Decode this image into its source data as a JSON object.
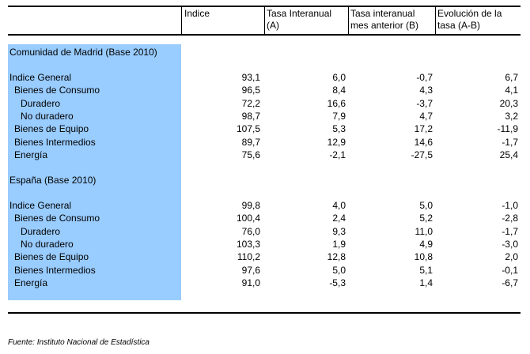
{
  "headers": {
    "indice": "Indice",
    "tasa_interanual": [
      "Tasa Interanual",
      "(A)"
    ],
    "tasa_mes_anterior": [
      "Tasa interanual",
      "mes anterior (B)"
    ],
    "evolucion": [
      "Evolución de la",
      "tasa (A-B)"
    ]
  },
  "sections": [
    {
      "title": "Comunidad de Madrid (Base 2010)",
      "rows": [
        {
          "label": "Indice General",
          "indent": 0,
          "values": [
            "93,1",
            "6,0",
            "-0,7",
            "6,7"
          ]
        },
        {
          "label": "Bienes de Consumo",
          "indent": 1,
          "values": [
            "96,5",
            "8,4",
            "4,3",
            "4,1"
          ]
        },
        {
          "label": "Duradero",
          "indent": 2,
          "values": [
            "72,2",
            "16,6",
            "-3,7",
            "20,3"
          ]
        },
        {
          "label": "No duradero",
          "indent": 2,
          "values": [
            "98,7",
            "7,9",
            "4,7",
            "3,2"
          ]
        },
        {
          "label": "Bienes de Equipo",
          "indent": 1,
          "values": [
            "107,5",
            "5,3",
            "17,2",
            "-11,9"
          ]
        },
        {
          "label": "Bienes Intermedios",
          "indent": 1,
          "values": [
            "89,7",
            "12,9",
            "14,6",
            "-1,7"
          ]
        },
        {
          "label": "Energía",
          "indent": 1,
          "values": [
            "75,6",
            "-2,1",
            "-27,5",
            "25,4"
          ]
        }
      ]
    },
    {
      "title": "España (Base 2010)",
      "rows": [
        {
          "label": "Indice General",
          "indent": 0,
          "values": [
            "99,8",
            "4,0",
            "5,0",
            "-1,0"
          ]
        },
        {
          "label": "Bienes de Consumo",
          "indent": 1,
          "values": [
            "100,4",
            "2,4",
            "5,2",
            "-2,8"
          ]
        },
        {
          "label": "Duradero",
          "indent": 2,
          "values": [
            "76,0",
            "9,3",
            "11,0",
            "-1,7"
          ]
        },
        {
          "label": "No duradero",
          "indent": 2,
          "values": [
            "103,3",
            "1,9",
            "4,9",
            "-3,0"
          ]
        },
        {
          "label": "Bienes de Equipo",
          "indent": 1,
          "values": [
            "110,2",
            "12,8",
            "10,8",
            "2,0"
          ]
        },
        {
          "label": "Bienes Intermedios",
          "indent": 1,
          "values": [
            "97,6",
            "5,0",
            "5,1",
            "-0,1"
          ]
        },
        {
          "label": "Energía",
          "indent": 1,
          "values": [
            "91,0",
            "-5,3",
            "1,4",
            "-6,7"
          ]
        }
      ]
    }
  ],
  "footer": "Fuente: Instituto Nacional de Estadística"
}
